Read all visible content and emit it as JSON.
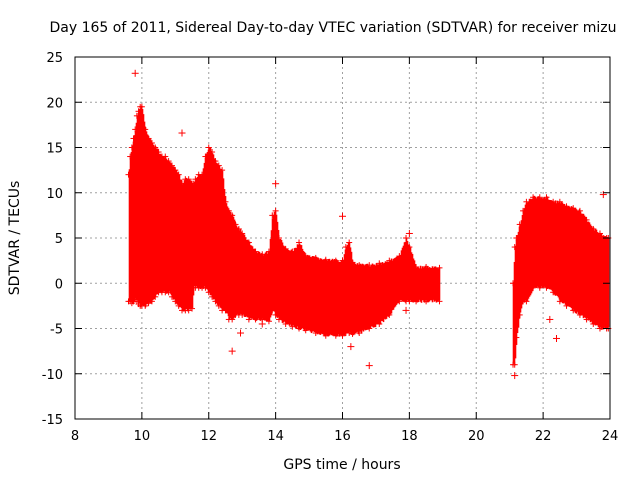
{
  "chart_data": {
    "type": "scatter",
    "title": "Day 165 of 2011, Sidereal Day-to-day VTEC variation (SDTVAR) for receiver mizu",
    "xlabel": "GPS time / hours",
    "ylabel": "SDTVAR / TECUs",
    "xlim": [
      8,
      24
    ],
    "ylim": [
      -15,
      25
    ],
    "xticks": [
      8,
      10,
      12,
      14,
      16,
      18,
      20,
      22,
      24
    ],
    "yticks": [
      -15,
      -10,
      -5,
      0,
      5,
      10,
      15,
      20,
      25
    ],
    "grid": true,
    "marker": "+",
    "series_color": "#ff0000",
    "envelope_description": "dense band of points; each entry is [hour, lower, upper] in TECU",
    "envelope": [
      [
        9.6,
        -2.0,
        12.0
      ],
      [
        9.65,
        -2.0,
        14.0
      ],
      [
        9.7,
        -2.2,
        15.0
      ],
      [
        9.75,
        -2.0,
        16.0
      ],
      [
        9.8,
        -1.8,
        17.0
      ],
      [
        9.85,
        -2.0,
        18.5
      ],
      [
        9.9,
        -2.3,
        19.0
      ],
      [
        9.95,
        -2.5,
        19.5
      ],
      [
        10.0,
        -2.5,
        19.5
      ],
      [
        10.1,
        -2.5,
        17.0
      ],
      [
        10.2,
        -2.2,
        16.0
      ],
      [
        10.3,
        -2.0,
        15.5
      ],
      [
        10.4,
        -1.5,
        15.0
      ],
      [
        10.5,
        -1.0,
        14.5
      ],
      [
        10.6,
        -1.0,
        14.0
      ],
      [
        10.7,
        -1.0,
        14.0
      ],
      [
        10.8,
        -1.0,
        13.5
      ],
      [
        10.9,
        -1.5,
        13.0
      ],
      [
        11.0,
        -2.0,
        12.5
      ],
      [
        11.1,
        -2.5,
        12.0
      ],
      [
        11.2,
        -3.0,
        11.0
      ],
      [
        11.3,
        -3.0,
        11.5
      ],
      [
        11.4,
        -3.0,
        11.5
      ],
      [
        11.5,
        -2.8,
        11.0
      ],
      [
        11.55,
        -0.5,
        11.0
      ],
      [
        11.6,
        -0.5,
        11.5
      ],
      [
        11.7,
        -0.5,
        12.0
      ],
      [
        11.8,
        -0.5,
        12.0
      ],
      [
        11.9,
        -0.5,
        14.0
      ],
      [
        12.0,
        -1.0,
        15.0
      ],
      [
        12.1,
        -1.5,
        14.5
      ],
      [
        12.2,
        -2.0,
        13.5
      ],
      [
        12.3,
        -2.5,
        13.0
      ],
      [
        12.4,
        -3.0,
        12.5
      ],
      [
        12.5,
        -3.0,
        9.0
      ],
      [
        12.6,
        -4.0,
        8.0
      ],
      [
        12.7,
        -4.0,
        7.5
      ],
      [
        12.8,
        -3.5,
        6.5
      ],
      [
        12.9,
        -3.5,
        6.0
      ],
      [
        13.0,
        -3.5,
        5.5
      ],
      [
        13.2,
        -4.0,
        4.5
      ],
      [
        13.4,
        -4.0,
        3.5
      ],
      [
        13.6,
        -4.0,
        3.2
      ],
      [
        13.8,
        -4.2,
        3.5
      ],
      [
        13.9,
        -3.0,
        7.5
      ],
      [
        14.0,
        -3.5,
        8.0
      ],
      [
        14.1,
        -4.0,
        5.0
      ],
      [
        14.3,
        -4.5,
        3.8
      ],
      [
        14.5,
        -4.8,
        3.5
      ],
      [
        14.7,
        -5.0,
        4.5
      ],
      [
        14.9,
        -5.2,
        3.0
      ],
      [
        15.2,
        -5.5,
        2.8
      ],
      [
        15.5,
        -5.8,
        2.6
      ],
      [
        15.8,
        -5.8,
        2.5
      ],
      [
        16.0,
        -5.8,
        2.5
      ],
      [
        16.1,
        -5.5,
        4.0
      ],
      [
        16.2,
        -5.5,
        4.5
      ],
      [
        16.3,
        -5.6,
        2.3
      ],
      [
        16.5,
        -5.5,
        2.0
      ],
      [
        16.8,
        -5.0,
        2.0
      ],
      [
        17.1,
        -4.5,
        2.2
      ],
      [
        17.4,
        -3.5,
        2.5
      ],
      [
        17.7,
        -2.0,
        3.0
      ],
      [
        17.9,
        -2.0,
        5.0
      ],
      [
        18.0,
        -2.0,
        4.0
      ],
      [
        18.2,
        -2.0,
        1.8
      ],
      [
        18.5,
        -2.0,
        1.8
      ],
      [
        18.9,
        -2.0,
        1.7
      ],
      [
        21.1,
        -9.0,
        0.0
      ],
      [
        21.15,
        -9.0,
        4.0
      ],
      [
        21.2,
        -6.0,
        5.0
      ],
      [
        21.3,
        -3.5,
        6.5
      ],
      [
        21.4,
        -2.0,
        8.0
      ],
      [
        21.5,
        -2.0,
        9.0
      ],
      [
        21.7,
        -0.5,
        9.5
      ],
      [
        21.9,
        -0.5,
        9.5
      ],
      [
        22.1,
        -0.5,
        9.5
      ],
      [
        22.3,
        -1.0,
        9.0
      ],
      [
        22.5,
        -2.0,
        9.0
      ],
      [
        22.7,
        -2.5,
        8.5
      ],
      [
        22.9,
        -3.0,
        8.3
      ],
      [
        23.1,
        -3.5,
        8.0
      ],
      [
        23.3,
        -4.0,
        7.0
      ],
      [
        23.5,
        -4.5,
        6.0
      ],
      [
        23.7,
        -5.0,
        5.5
      ],
      [
        23.9,
        -5.0,
        5.0
      ],
      [
        23.95,
        -5.0,
        5.0
      ]
    ],
    "outliers": [
      [
        9.8,
        23.2
      ],
      [
        11.2,
        16.6
      ],
      [
        13.6,
        -4.5
      ],
      [
        12.7,
        -7.5
      ],
      [
        12.95,
        -5.5
      ],
      [
        14.0,
        11.0
      ],
      [
        16.0,
        7.4
      ],
      [
        16.25,
        -7.0
      ],
      [
        16.8,
        -9.1
      ],
      [
        17.9,
        -3.0
      ],
      [
        18.0,
        5.5
      ],
      [
        21.15,
        -10.2
      ],
      [
        22.4,
        -6.1
      ],
      [
        23.8,
        9.8
      ],
      [
        22.2,
        -4.0
      ]
    ]
  }
}
